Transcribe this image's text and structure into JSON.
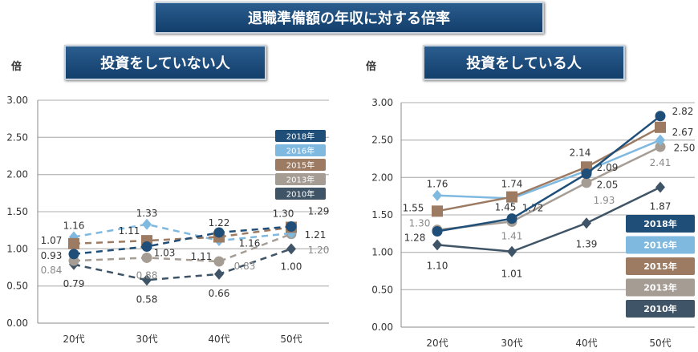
{
  "title": "退職準備額の年収に対する倍率",
  "colors": {
    "2018年": "#1f4e79",
    "2016年": "#7fb9e0",
    "2015年": "#9c7b62",
    "2013年": "#a59d94",
    "2010年": "#3f5466"
  },
  "chart_data": [
    {
      "type": "line",
      "title": "投資をしていない人",
      "ylabel": "倍",
      "categories": [
        "20代",
        "30代",
        "40代",
        "50代"
      ],
      "ylim": [
        0,
        3
      ],
      "yticks": [
        "0.00",
        "0.50",
        "1.00",
        "1.50",
        "2.00",
        "2.50",
        "3.00"
      ],
      "grid": true,
      "legend": "top-right",
      "line_style": "dashed",
      "series": [
        {
          "name": "2018年",
          "marker": "circle",
          "values": [
            0.93,
            1.03,
            1.22,
            1.3
          ]
        },
        {
          "name": "2016年",
          "marker": "diamond",
          "values": [
            1.16,
            1.33,
            1.11,
            1.21
          ]
        },
        {
          "name": "2015年",
          "marker": "square",
          "values": [
            1.07,
            1.11,
            1.16,
            1.29
          ]
        },
        {
          "name": "2013年",
          "marker": "circle",
          "values": [
            0.84,
            0.88,
            0.83,
            1.2
          ]
        },
        {
          "name": "2010年",
          "marker": "diamond",
          "values": [
            0.79,
            0.58,
            0.66,
            1.0
          ]
        }
      ]
    },
    {
      "type": "line",
      "title": "投資をしている人",
      "ylabel": "倍",
      "categories": [
        "20代",
        "30代",
        "40代",
        "50代"
      ],
      "ylim": [
        0,
        3
      ],
      "yticks": [
        "0.00",
        "0.50",
        "1.00",
        "1.50",
        "2.00",
        "2.50",
        "3.00"
      ],
      "grid": true,
      "legend": "bottom-right",
      "line_style": "solid",
      "series": [
        {
          "name": "2018年",
          "marker": "circle",
          "values": [
            1.28,
            1.45,
            2.05,
            2.82
          ]
        },
        {
          "name": "2016年",
          "marker": "diamond",
          "values": [
            1.76,
            1.72,
            2.09,
            2.5
          ]
        },
        {
          "name": "2015年",
          "marker": "square",
          "values": [
            1.55,
            1.74,
            2.14,
            2.67
          ]
        },
        {
          "name": "2013年",
          "marker": "circle",
          "values": [
            1.3,
            1.41,
            1.93,
            2.41
          ]
        },
        {
          "name": "2010年",
          "marker": "diamond",
          "values": [
            1.1,
            1.01,
            1.39,
            1.87
          ]
        }
      ]
    }
  ]
}
